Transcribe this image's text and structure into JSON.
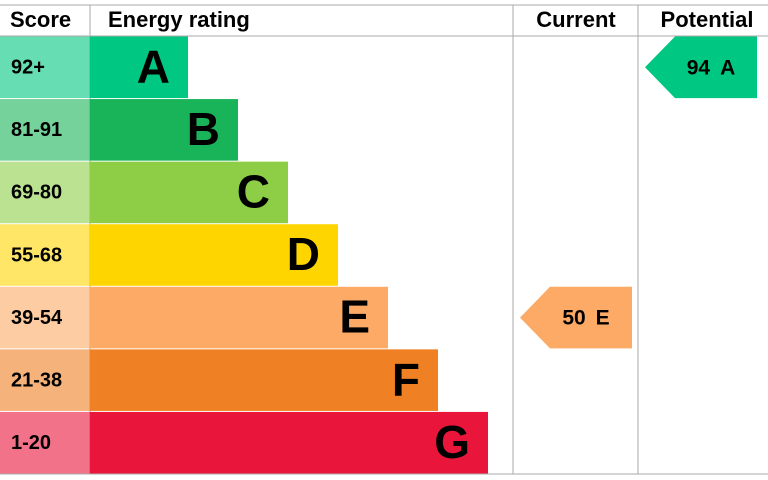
{
  "header": {
    "score": "Score",
    "rating": "Energy rating",
    "current": "Current",
    "potential": "Potential"
  },
  "bands": [
    {
      "score": "92+",
      "letter": "A",
      "color": "#00c781"
    },
    {
      "score": "81-91",
      "letter": "B",
      "color": "#19b459"
    },
    {
      "score": "69-80",
      "letter": "C",
      "color": "#8dce46"
    },
    {
      "score": "55-68",
      "letter": "D",
      "color": "#ffd500"
    },
    {
      "score": "39-54",
      "letter": "E",
      "color": "#fcaa65"
    },
    {
      "score": "21-38",
      "letter": "F",
      "color": "#ef8023"
    },
    {
      "score": "1-20",
      "letter": "G",
      "color": "#e9153b"
    }
  ],
  "current": {
    "value": 50,
    "letter": "E"
  },
  "potential": {
    "value": 94,
    "letter": "A"
  }
}
